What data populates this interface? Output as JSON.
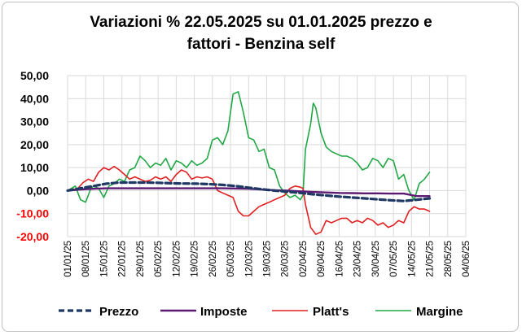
{
  "chart_data": {
    "type": "line",
    "title_line1": "Variazioni % 22.05.2025 su 01.01.2025 prezzo e",
    "title_line2": "fattori - Benzina self",
    "ylim": [
      -20,
      50
    ],
    "yticks": [
      "50,00",
      "40,00",
      "30,00",
      "20,00",
      "10,00",
      "0,00",
      "-10,00",
      "-20,00"
    ],
    "ytick_values": [
      50,
      40,
      30,
      20,
      10,
      0,
      -10,
      -20
    ],
    "negative_tick_color": "#ff0000",
    "xticks": [
      "01/01/25",
      "08/01/25",
      "15/01/25",
      "22/01/25",
      "29/01/25",
      "05/02/25",
      "12/02/25",
      "19/02/25",
      "26/02/25",
      "05/03/25",
      "12/03/25",
      "19/03/25",
      "26/03/25",
      "02/04/25",
      "09/04/25",
      "16/04/25",
      "23/04/25",
      "30/04/25",
      "07/05/25",
      "14/05/25",
      "21/05/25",
      "28/05/25",
      "04/06/25"
    ],
    "x_range_days": [
      0,
      154
    ],
    "grid": true,
    "legend_position": "bottom",
    "series": [
      {
        "name": "Prezzo",
        "color": "#1f3864",
        "style": "dashed",
        "x": [
          0,
          5,
          10,
          15,
          20,
          25,
          30,
          35,
          40,
          45,
          50,
          55,
          60,
          65,
          70,
          75,
          80,
          85,
          90,
          95,
          100,
          105,
          110,
          115,
          120,
          125,
          130,
          135,
          140
        ],
        "y": [
          0,
          1,
          2,
          3,
          3.5,
          3.5,
          3.5,
          3.4,
          3.2,
          3.1,
          3.0,
          2.8,
          2.5,
          2.0,
          1.3,
          0.6,
          0,
          -0.5,
          -1.0,
          -1.6,
          -2.1,
          -2.6,
          -3.0,
          -3.4,
          -3.8,
          -4.2,
          -4.5,
          -4.0,
          -3.4
        ]
      },
      {
        "name": "Imposte",
        "color": "#5c1a73",
        "style": "solid",
        "x": [
          0,
          5,
          10,
          15,
          20,
          60,
          70,
          80,
          85,
          90,
          95,
          100,
          105,
          110,
          115,
          120,
          125,
          130,
          135,
          140
        ],
        "y": [
          0,
          0.5,
          0.8,
          1.0,
          1.0,
          1.0,
          0.8,
          0.2,
          0,
          -0.3,
          -0.6,
          -0.8,
          -1.0,
          -1.1,
          -1.2,
          -1.2,
          -1.3,
          -1.3,
          -2.4,
          -2.4
        ]
      },
      {
        "name": "Platt's",
        "color": "#e02020",
        "style": "solid",
        "x": [
          0,
          4,
          6,
          8,
          10,
          12,
          14,
          16,
          18,
          20,
          22,
          24,
          26,
          28,
          30,
          32,
          34,
          36,
          38,
          40,
          42,
          44,
          46,
          48,
          50,
          52,
          54,
          56,
          58,
          60,
          62,
          64,
          66,
          68,
          70,
          72,
          74,
          76,
          78,
          80,
          82,
          84,
          86,
          88,
          90,
          91,
          92,
          94,
          96,
          98,
          100,
          102,
          104,
          106,
          108,
          110,
          112,
          114,
          116,
          118,
          120,
          122,
          124,
          126,
          128,
          130,
          132,
          134,
          136,
          138,
          140
        ],
        "y": [
          0,
          1,
          3.5,
          5,
          4,
          8,
          10,
          9,
          10.5,
          9,
          7,
          5,
          6,
          5,
          4,
          4.5,
          6,
          5,
          6,
          4,
          7,
          9,
          8,
          5,
          6,
          5.5,
          6,
          5,
          0,
          -1,
          -2,
          -3,
          -9,
          -11,
          -11,
          -9,
          -7,
          -6,
          -5,
          -4,
          -3,
          -2,
          1,
          2,
          1.5,
          1,
          -6,
          -16,
          -19,
          -18,
          -13,
          -14,
          -13,
          -12,
          -12,
          -14,
          -13,
          -14,
          -12,
          -13,
          -15,
          -14,
          -16,
          -15,
          -13,
          -14,
          -9,
          -7,
          -8,
          -8,
          -9
        ]
      },
      {
        "name": "Margine",
        "color": "#21a845",
        "style": "solid",
        "x": [
          0,
          3,
          5,
          7,
          9,
          10,
          12,
          14,
          16,
          18,
          20,
          22,
          24,
          26,
          28,
          30,
          32,
          34,
          36,
          38,
          40,
          42,
          44,
          46,
          48,
          50,
          52,
          54,
          56,
          58,
          60,
          62,
          64,
          66,
          68,
          70,
          72,
          74,
          76,
          78,
          80,
          82,
          84,
          86,
          88,
          90,
          91,
          92,
          94,
          95,
          96,
          98,
          100,
          102,
          104,
          106,
          108,
          110,
          112,
          114,
          116,
          118,
          120,
          122,
          124,
          126,
          128,
          130,
          132,
          134,
          136,
          138,
          140
        ],
        "y": [
          0,
          2,
          -4,
          -5,
          1,
          2,
          1,
          -3,
          2,
          3,
          5,
          4,
          9,
          10,
          15,
          13,
          10,
          12,
          11,
          14,
          9,
          13,
          12,
          10,
          13,
          11,
          12,
          14,
          22,
          23,
          20,
          26,
          42,
          43,
          34,
          23,
          22,
          17,
          18,
          10,
          9,
          2,
          -1,
          -3,
          -2,
          -4,
          -2,
          18,
          29,
          38,
          36,
          25,
          19,
          17,
          16,
          15,
          15,
          14,
          12,
          9,
          10,
          14,
          13,
          10,
          14,
          13,
          5,
          7,
          0,
          -4,
          3,
          5,
          8
        ]
      }
    ]
  }
}
